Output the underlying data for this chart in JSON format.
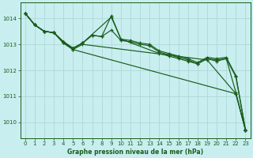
{
  "title": "Graphe pression niveau de la mer (hPa)",
  "bg_color": "#c8eef0",
  "line_color": "#1a5c1a",
  "grid_color": "#b0d8d8",
  "xlim": [
    -0.5,
    23.5
  ],
  "ylim": [
    1009.4,
    1014.6
  ],
  "yticks": [
    1010,
    1011,
    1012,
    1013,
    1014
  ],
  "xticks": [
    0,
    1,
    2,
    3,
    4,
    5,
    6,
    7,
    8,
    9,
    10,
    11,
    12,
    13,
    14,
    15,
    16,
    17,
    18,
    19,
    20,
    21,
    22,
    23
  ],
  "lines": [
    [
      [
        0,
        1014.2
      ],
      [
        1,
        1013.75
      ],
      [
        2,
        1013.5
      ],
      [
        3,
        1013.45
      ],
      [
        4,
        1013.1
      ],
      [
        5,
        1012.85
      ],
      [
        6,
        1013.05
      ],
      [
        7,
        1013.35
      ],
      [
        8,
        1013.3
      ],
      [
        9,
        1014.1
      ],
      [
        10,
        1013.2
      ],
      [
        11,
        1013.15
      ],
      [
        12,
        1013.05
      ],
      [
        13,
        1013.0
      ],
      [
        14,
        1012.75
      ],
      [
        15,
        1012.65
      ],
      [
        16,
        1012.55
      ],
      [
        17,
        1012.45
      ],
      [
        18,
        1012.3
      ],
      [
        19,
        1012.5
      ],
      [
        20,
        1012.45
      ],
      [
        21,
        1012.5
      ],
      [
        22,
        1011.8
      ],
      [
        23,
        1009.72
      ]
    ],
    [
      [
        0,
        1014.2
      ],
      [
        1,
        1013.75
      ],
      [
        2,
        1013.5
      ],
      [
        3,
        1013.45
      ],
      [
        4,
        1013.1
      ],
      [
        5,
        1012.85
      ],
      [
        6,
        1013.05
      ],
      [
        7,
        1013.35
      ],
      [
        8,
        1013.3
      ],
      [
        9,
        1013.55
      ],
      [
        10,
        1013.15
      ],
      [
        11,
        1013.1
      ],
      [
        12,
        1013.0
      ],
      [
        13,
        1012.95
      ],
      [
        14,
        1012.7
      ],
      [
        15,
        1012.6
      ],
      [
        16,
        1012.5
      ],
      [
        17,
        1012.4
      ],
      [
        18,
        1012.25
      ],
      [
        19,
        1012.45
      ],
      [
        20,
        1012.4
      ],
      [
        21,
        1012.45
      ],
      [
        22,
        1011.75
      ],
      [
        23,
        1009.7
      ]
    ],
    [
      [
        0,
        1014.2
      ],
      [
        1,
        1013.75
      ],
      [
        2,
        1013.5
      ],
      [
        3,
        1013.45
      ],
      [
        4,
        1013.1
      ],
      [
        5,
        1012.85
      ],
      [
        6,
        1013.05
      ],
      [
        9,
        1014.05
      ],
      [
        10,
        1013.2
      ],
      [
        14,
        1012.65
      ],
      [
        15,
        1012.55
      ],
      [
        16,
        1012.45
      ],
      [
        17,
        1012.35
      ],
      [
        18,
        1012.25
      ],
      [
        19,
        1012.45
      ],
      [
        20,
        1012.35
      ],
      [
        21,
        1012.45
      ],
      [
        22,
        1011.15
      ],
      [
        23,
        1009.7
      ]
    ],
    [
      [
        0,
        1014.2
      ],
      [
        1,
        1013.75
      ],
      [
        2,
        1013.5
      ],
      [
        3,
        1013.45
      ],
      [
        4,
        1013.05
      ],
      [
        5,
        1012.8
      ],
      [
        6,
        1013.0
      ],
      [
        19,
        1012.4
      ],
      [
        22,
        1011.1
      ],
      [
        23,
        1009.7
      ]
    ],
    [
      [
        0,
        1014.2
      ],
      [
        1,
        1013.75
      ],
      [
        2,
        1013.5
      ],
      [
        3,
        1013.45
      ],
      [
        4,
        1013.05
      ],
      [
        5,
        1012.8
      ],
      [
        22,
        1011.1
      ],
      [
        23,
        1009.7
      ]
    ]
  ]
}
